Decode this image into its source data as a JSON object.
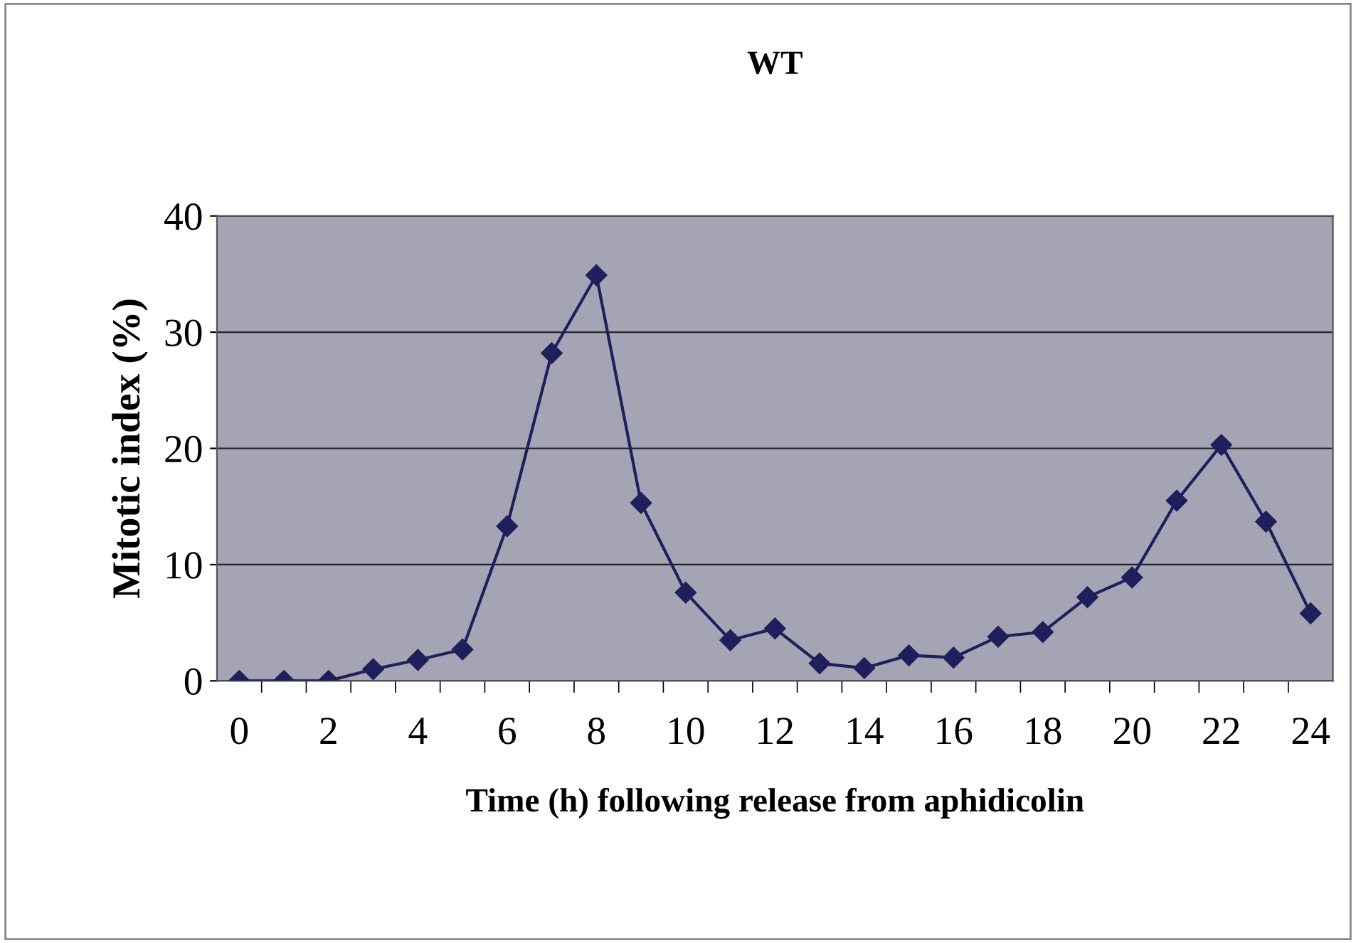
{
  "chart_data": {
    "type": "line",
    "title": "WT",
    "xlabel": "Time (h) following release from aphidicolin",
    "ylabel": "Mitotic index (%)",
    "categories": [
      "0",
      null,
      "2",
      null,
      "4",
      null,
      "6",
      null,
      "8",
      null,
      "10",
      null,
      "12",
      null,
      "14",
      null,
      "16",
      null,
      "18",
      null,
      "20",
      null,
      "22",
      null,
      "24"
    ],
    "series": [
      {
        "color": "#1f1f5c",
        "values": [
          0,
          0,
          0,
          1,
          1.8,
          2.7,
          13.3,
          28.2,
          34.9,
          15.3,
          7.6,
          3.5,
          4.5,
          1.5,
          1.1,
          2.2,
          2.0,
          3.8,
          4.2,
          7.2,
          8.9,
          15.5,
          20.3,
          13.7,
          5.8
        ]
      }
    ],
    "ylim": [
      0,
      40
    ],
    "yticks": [
      0,
      10,
      20,
      30,
      40
    ],
    "grid": "y",
    "marker": "diamond",
    "line_style": "solid",
    "legend": false
  }
}
